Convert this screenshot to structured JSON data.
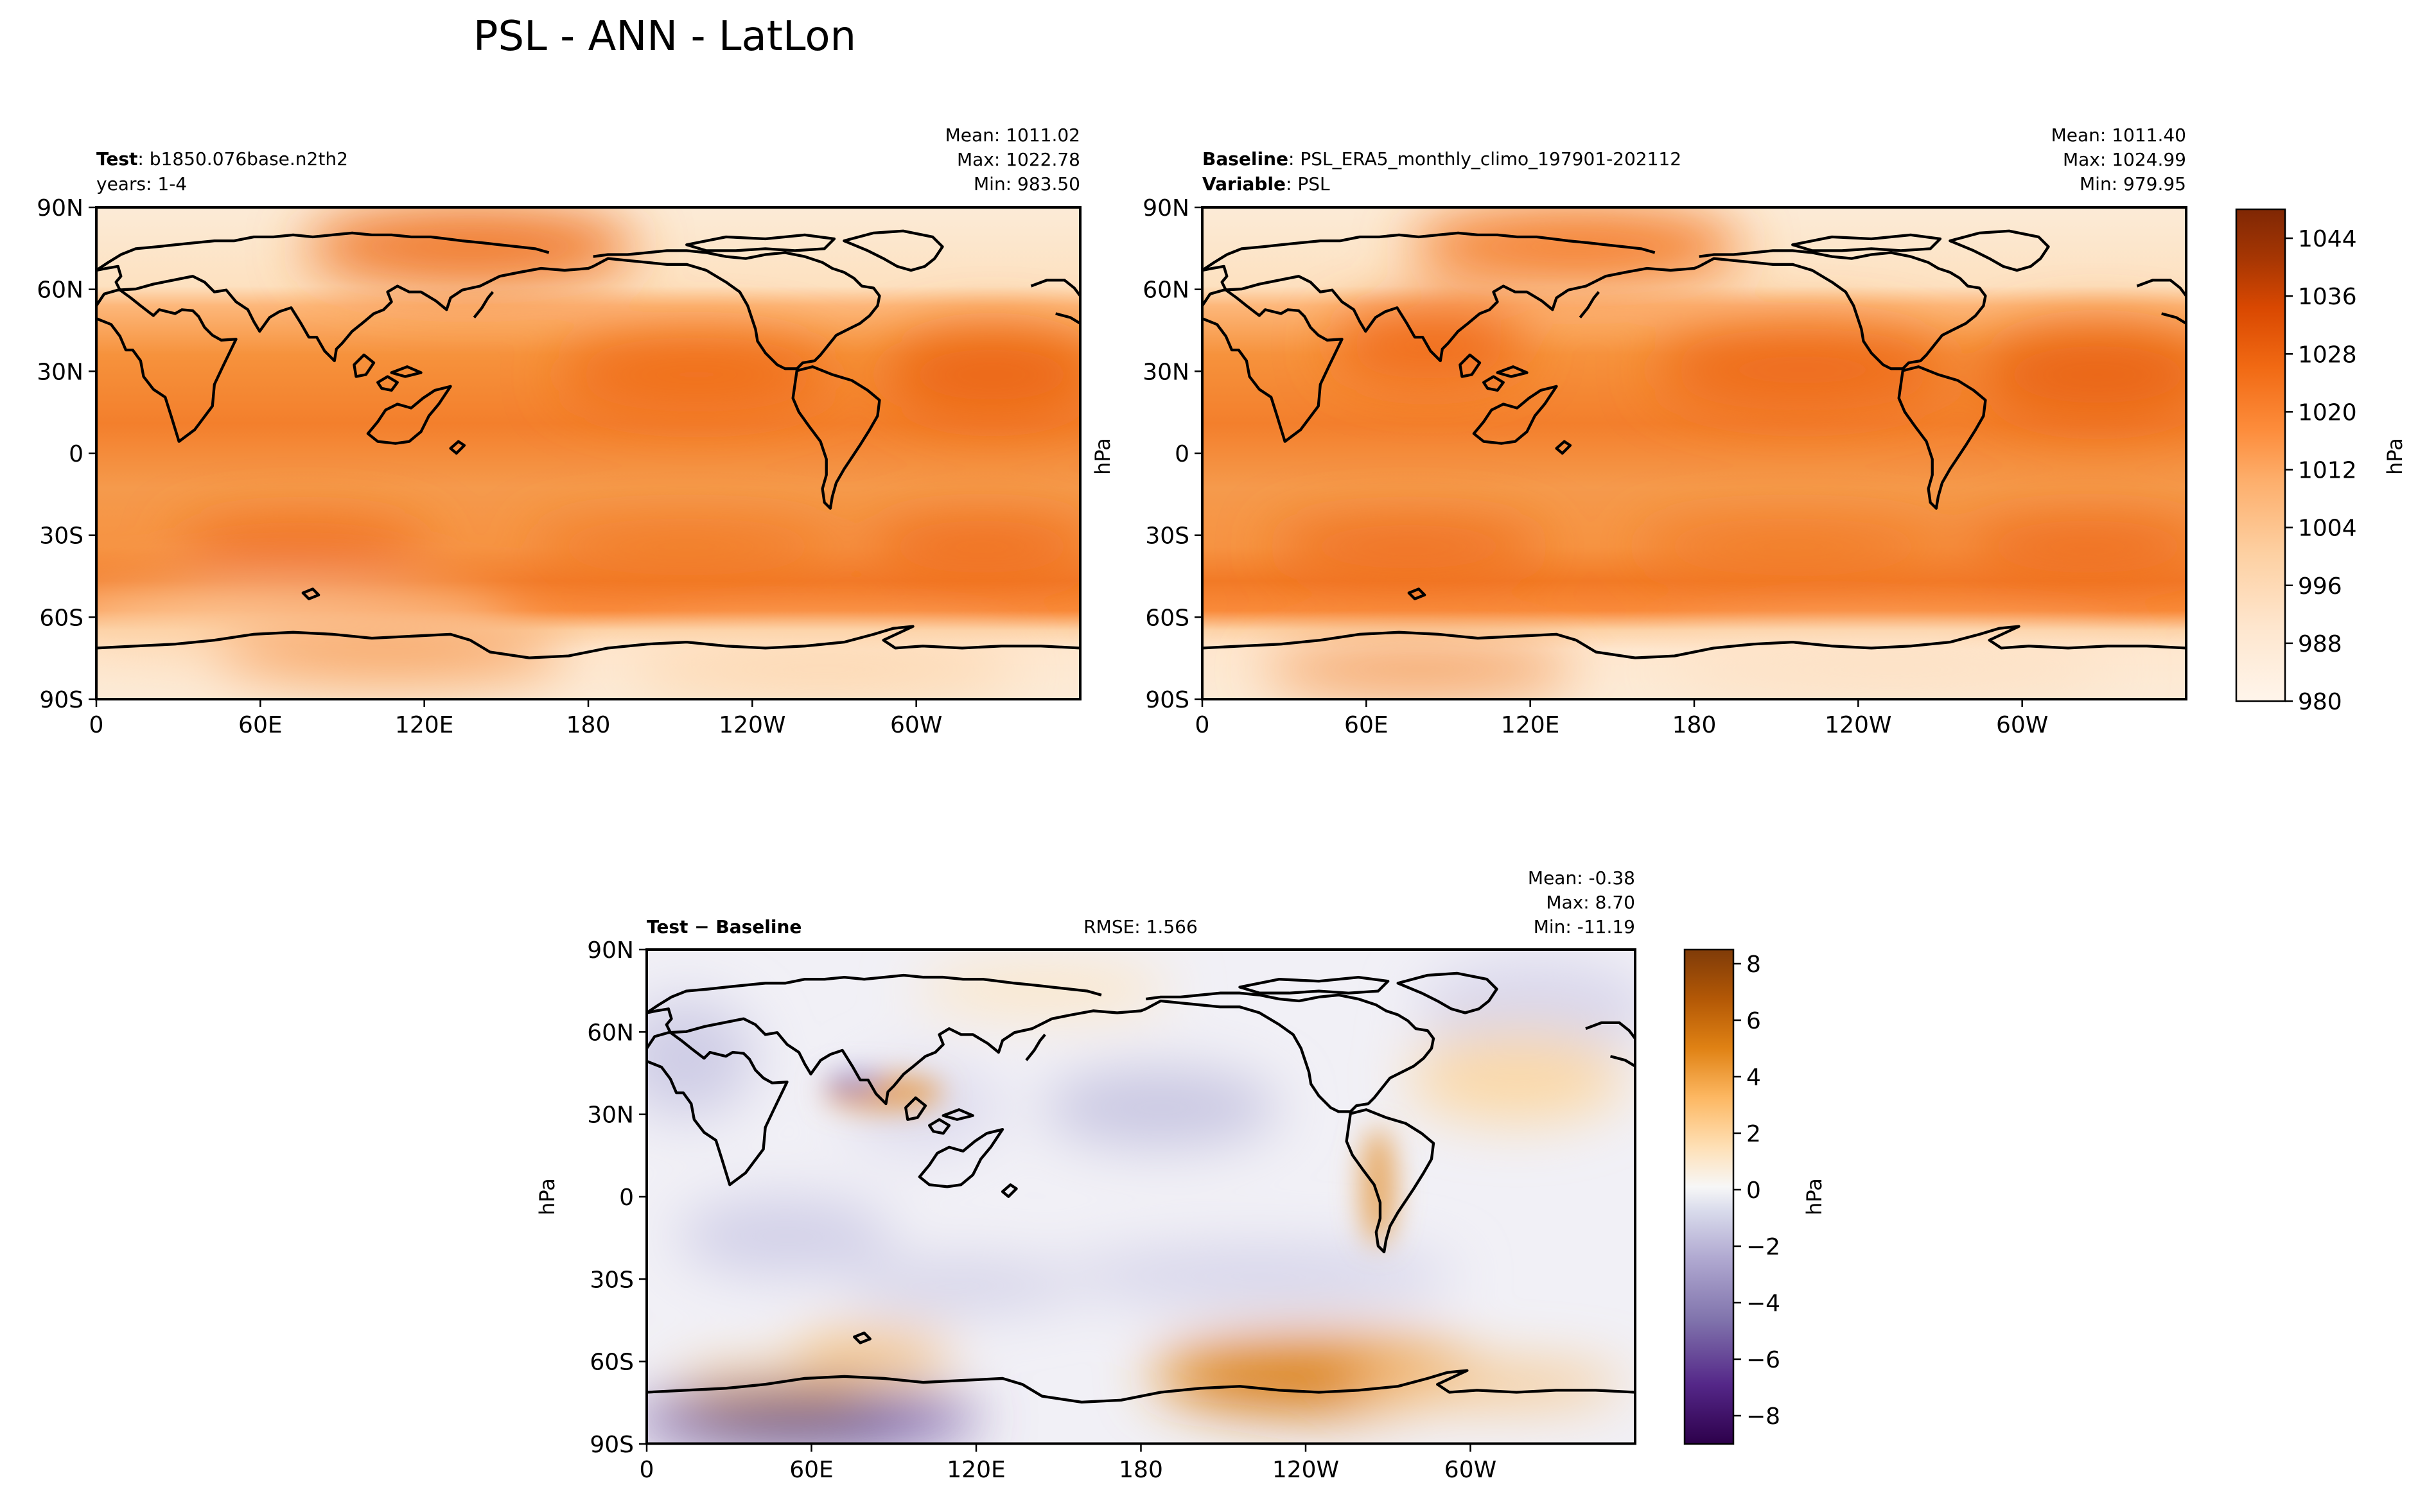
{
  "figure": {
    "title": "PSL - ANN - LatLon"
  },
  "colors": {
    "psl_scale": [
      "#fff5eb",
      "#fee6ce",
      "#fdd0a2",
      "#fdae6b",
      "#fd8d3c",
      "#f16913",
      "#d94801",
      "#a63603",
      "#7f2704"
    ],
    "diff_pos": [
      "#f7f7f7",
      "#fee0b6",
      "#fdb863",
      "#e08214",
      "#b35806",
      "#7f3b08"
    ],
    "diff_neg": [
      "#f7f7f7",
      "#d8daeb",
      "#b2abd2",
      "#8073ac",
      "#542788",
      "#2d004b"
    ],
    "coast": "#000000"
  },
  "icons": [
    "map-panel",
    "colorbar"
  ],
  "chart_data": [
    {
      "type": "heatmap",
      "panel": "test",
      "title_label": "Test",
      "title_value": "b1850.076base.n2th2",
      "subtitle": "years: 1-4",
      "stats": {
        "mean": "Mean: 1011.02",
        "max": "Max: 1022.78",
        "min": "Min: 983.50"
      },
      "x_ticks": [
        "0",
        "60E",
        "120E",
        "180",
        "120W",
        "60W"
      ],
      "y_ticks": [
        "90N",
        "60N",
        "30N",
        "0",
        "30S",
        "60S",
        "90S"
      ],
      "xlim": [
        0,
        360
      ],
      "ylim": [
        -90,
        90
      ],
      "zlim": [
        980,
        1048
      ],
      "units": "hPa"
    },
    {
      "type": "heatmap",
      "panel": "baseline",
      "title_label": "Baseline",
      "title_value": "PSL_ERA5_monthly_climo_197901-202112",
      "var_label": "Variable",
      "var_value": "PSL",
      "stats": {
        "mean": "Mean: 1011.40",
        "max": "Max: 1024.99",
        "min": "Min: 979.95"
      },
      "x_ticks": [
        "0",
        "60E",
        "120E",
        "180",
        "120W",
        "60W"
      ],
      "y_ticks": [
        "90N",
        "60N",
        "30N",
        "0",
        "30S",
        "60S",
        "90S"
      ],
      "xlim": [
        0,
        360
      ],
      "ylim": [
        -90,
        90
      ],
      "zlim": [
        980,
        1048
      ],
      "ylabel": "hPa",
      "colorbar": {
        "label": "hPa",
        "ticks": [
          "1044",
          "1036",
          "1028",
          "1020",
          "1012",
          "1004",
          "996",
          "988",
          "980"
        ],
        "values": [
          1044,
          1036,
          1028,
          1020,
          1012,
          1004,
          996,
          988,
          980
        ],
        "range": [
          980,
          1048
        ]
      }
    },
    {
      "type": "heatmap",
      "panel": "difference",
      "title_label": "Test",
      "title_op": "−",
      "title_value": "Baseline",
      "rmse": "RMSE: 1.566",
      "stats": {
        "mean": "Mean: -0.38",
        "max": "Max:  8.70",
        "min": "Min: -11.19"
      },
      "x_ticks": [
        "0",
        "60E",
        "120E",
        "180",
        "120W",
        "60W"
      ],
      "y_ticks": [
        "90N",
        "60N",
        "30N",
        "0",
        "30S",
        "60S",
        "90S"
      ],
      "xlim": [
        0,
        360
      ],
      "ylim": [
        -90,
        90
      ],
      "zlim": [
        -9,
        8.5
      ],
      "ylabel": "hPa",
      "colorbar": {
        "label": "hPa",
        "ticks": [
          "8",
          "6",
          "4",
          "2",
          "0",
          "−2",
          "−4",
          "−6",
          "−8"
        ],
        "values": [
          8,
          6,
          4,
          2,
          0,
          -2,
          -4,
          -6,
          -8
        ],
        "range": [
          -9,
          8.5
        ]
      }
    }
  ]
}
